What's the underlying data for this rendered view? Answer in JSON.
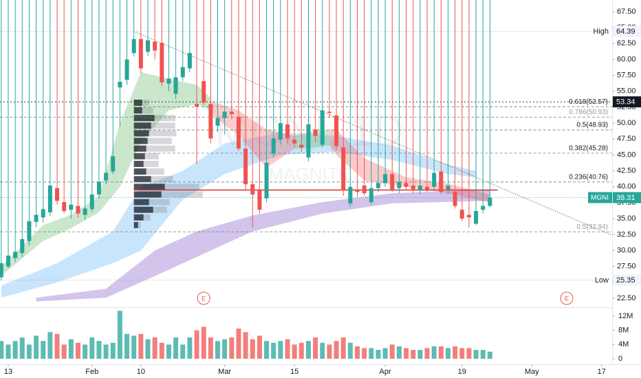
{
  "chart_data": {
    "type": "candlestick",
    "watermark": "MGNI, 1D",
    "watermark_sub": "MAGNITE",
    "xlim": [
      -0.18,
      87.5
    ],
    "ylim": [
      21.1,
      69.33
    ],
    "vlim": [
      -1550000,
      14130000
    ],
    "xticks": [
      {
        "value": 1,
        "label": "13"
      },
      {
        "value": 13,
        "label": "Feb"
      },
      {
        "value": 20,
        "label": "10"
      },
      {
        "value": 32,
        "label": "Mar"
      },
      {
        "value": 42,
        "label": "15"
      },
      {
        "value": 55,
        "label": "Apr"
      },
      {
        "value": 66,
        "label": "19"
      },
      {
        "value": 76,
        "label": "May"
      },
      {
        "value": 86,
        "label": "17"
      }
    ],
    "yticks": [
      {
        "value": 22.5,
        "label": "22.50"
      },
      {
        "value": 25,
        "label": "25.00"
      },
      {
        "value": 27.5,
        "label": "27.50"
      },
      {
        "value": 30,
        "label": "30.00"
      },
      {
        "value": 32.5,
        "label": "32.50"
      },
      {
        "value": 35,
        "label": "35.00"
      },
      {
        "value": 37.5,
        "label": "37.50"
      },
      {
        "value": 40,
        "label": "40.00"
      },
      {
        "value": 42.5,
        "label": "42.50"
      },
      {
        "value": 45,
        "label": "45.00"
      },
      {
        "value": 47.5,
        "label": "47.50"
      },
      {
        "value": 50,
        "label": "50.00"
      },
      {
        "value": 52.5,
        "label": "52.50"
      },
      {
        "value": 55,
        "label": "55.00"
      },
      {
        "value": 57.5,
        "label": "57.50"
      },
      {
        "value": 60,
        "label": "60.00"
      },
      {
        "value": 62.5,
        "label": "62.50"
      },
      {
        "value": 65,
        "label": "65.00"
      },
      {
        "value": 67.5,
        "label": "67.50"
      }
    ],
    "vticks": [
      0,
      {
        "value": 4000000,
        "label": "4M"
      },
      {
        "value": 8000000,
        "label": "8M"
      },
      {
        "value": 12000000,
        "label": "12M"
      }
    ],
    "up_color": "#26a69a",
    "down_color": "#ef5350",
    "open": [
      25.8,
      27.5,
      28.8,
      29.6,
      31.5,
      34.5,
      35.2,
      36.0,
      39.8,
      37.6,
      36.4,
      37.0,
      35.6,
      36.5,
      38.8,
      41.0,
      42.4,
      55.6,
      56.8,
      61.0,
      63.2,
      61.2,
      62.8,
      62.6,
      56.2,
      54.6,
      57.2,
      58.6,
      53.0,
      56.6,
      53.0,
      49.6,
      50.8,
      51.8,
      51.0,
      46.0,
      40.4,
      39.4,
      38.2,
      45.2,
      47.4,
      49.8,
      47.4,
      46.6,
      44.6,
      49.0,
      46.6,
      51.8,
      51.2,
      46.2,
      37.4,
      39.6,
      40.2,
      37.6,
      39.8,
      40.6,
      42.0,
      39.8,
      40.6,
      40.2,
      39.4,
      40.0,
      40.0,
      42.4,
      39.6,
      39.2,
      36.4,
      35.6,
      34.2,
      36.4,
      37.0
    ],
    "high": {
      "label": "High",
      "value": 64.39
    },
    "low": [
      25.35,
      27.2,
      28.2,
      29.0,
      30.8,
      33.6,
      34.4,
      35.4,
      37.2,
      35.8,
      35.0,
      35.2,
      34.8,
      36.0,
      38.2,
      40.4,
      42.0,
      49.5,
      56.0,
      60.5,
      57.8,
      60.6,
      60.0,
      55.8,
      55.0,
      53.8,
      56.6,
      58.0,
      43.6,
      52.8,
      46.8,
      48.6,
      48.2,
      50.6,
      45.6,
      39.6,
      33.6,
      35.8,
      37.6,
      44.6,
      46.6,
      46.8,
      46.2,
      45.4,
      44.0,
      47.0,
      46.2,
      50.8,
      45.8,
      38.6,
      36.8,
      38.4,
      38.6,
      37.2,
      39.2,
      40.0,
      39.2,
      39.0,
      39.6,
      39.0,
      38.8,
      39.2,
      39.6,
      38.8,
      38.8,
      36.6,
      34.6,
      33.6,
      34.0,
      35.8,
      36.8
    ],
    "close": [
      28.0,
      29.2,
      29.8,
      31.8,
      34.6,
      35.6,
      36.5,
      40.2,
      37.8,
      36.2,
      37.2,
      35.8,
      36.6,
      38.8,
      40.8,
      42.2,
      44.8,
      56.5,
      60.0,
      63.2,
      58.6,
      63.0,
      61.4,
      56.4,
      57.0,
      57.2,
      58.8,
      61.0,
      52.6,
      53.2,
      47.6,
      50.8,
      51.8,
      51.4,
      46.0,
      40.4,
      38.8,
      36.4,
      43.8,
      47.6,
      50.0,
      47.6,
      46.8,
      46.2,
      49.8,
      48.0,
      52.0,
      51.6,
      46.4,
      39.4,
      40.0,
      39.2,
      39.0,
      39.8,
      40.6,
      42.0,
      39.6,
      40.8,
      40.0,
      39.4,
      40.2,
      39.6,
      42.2,
      39.2,
      40.2,
      37.0,
      35.0,
      35.2,
      36.2,
      37.0,
      38.31
    ],
    "volume": [
      5000000,
      4000000,
      5000000,
      6000000,
      4000000,
      6500000,
      5000000,
      7500000,
      7000000,
      4000000,
      5500000,
      4500000,
      4000000,
      6000000,
      5000000,
      4000000,
      4500000,
      13500000,
      7000000,
      6500000,
      7000000,
      5500000,
      6000000,
      4500000,
      4000000,
      6000000,
      4000000,
      6000000,
      8000000,
      9000000,
      6000000,
      5000000,
      5500000,
      6000000,
      8500000,
      7500000,
      5500000,
      6500000,
      5000000,
      4500000,
      5000000,
      5500000,
      4000000,
      4500000,
      5000000,
      6000000,
      4500000,
      4000000,
      5000000,
      6000000,
      4500000,
      3500000,
      3000000,
      3000000,
      2500000,
      3000000,
      4000000,
      3500000,
      3000000,
      2500000,
      2500000,
      3000000,
      3500000,
      3500000,
      3000000,
      3500000,
      3000000,
      3000000,
      2500000,
      2500000,
      2000000
    ],
    "bands": [
      {
        "color": "rgba(100,181,246,0.35)",
        "x": [
          0,
          8,
          16,
          20,
          26,
          32,
          40,
          48,
          56,
          64,
          68
        ],
        "low": [
          22.6,
          25,
          28,
          30,
          38,
          42,
          45,
          45.5,
          44.2,
          42,
          41.5
        ],
        "high": [
          24.5,
          28,
          33,
          40,
          42.5,
          46.8,
          48.5,
          48,
          46.5,
          43.5,
          42.5
        ]
      },
      {
        "color": "rgba(126,87,194,0.35)",
        "x": [
          5,
          15,
          22,
          28,
          36,
          46,
          56,
          70
        ],
        "low": [
          22,
          22.6,
          26,
          29,
          33,
          35.8,
          37.4,
          37.8
        ],
        "high": [
          22.6,
          24,
          30,
          33,
          35.5,
          37.6,
          39,
          39.6
        ]
      },
      {
        "color": "rgba(102,187,106,0.35)",
        "x": [
          0,
          6,
          10,
          14,
          17,
          20,
          24,
          28,
          30
        ],
        "low": [
          26,
          31.5,
          33.5,
          36,
          40,
          47,
          52,
          53,
          52
        ],
        "high": [
          27.5,
          34,
          35.6,
          38.5,
          50,
          58,
          57,
          56,
          54
        ]
      },
      {
        "color": "rgba(239,83,80,0.3)",
        "x": [
          30,
          34,
          38,
          42
        ],
        "low": [
          51.5,
          48,
          43,
          46
        ],
        "high": [
          53.5,
          52,
          49,
          48
        ]
      },
      {
        "color": "rgba(102,187,106,0.35)",
        "x": [
          42,
          44,
          47
        ],
        "low": [
          46,
          46,
          46.5
        ],
        "high": [
          48,
          48.6,
          49
        ]
      },
      {
        "color": "rgba(239,83,80,0.3)",
        "x": [
          47,
          48,
          52,
          58,
          64,
          70
        ],
        "low": [
          46.5,
          45,
          41,
          40,
          39,
          37.5
        ],
        "high": [
          49,
          49,
          44.5,
          41.5,
          40.5,
          38.8
        ]
      }
    ],
    "volume_profile": {
      "prices": [
        53.2,
        52.0,
        50.8,
        49.6,
        48.4,
        47.2,
        46.0,
        44.8,
        43.6,
        42.4,
        41.2,
        40.0,
        38.8,
        37.6,
        36.4,
        35.2,
        34.0
      ],
      "up": [
        12,
        12,
        30,
        25,
        22,
        20,
        18,
        16,
        14,
        18,
        25,
        45,
        40,
        22,
        28,
        14,
        6
      ],
      "down": [
        10,
        16,
        30,
        35,
        40,
        35,
        42,
        20,
        22,
        26,
        32,
        50,
        60,
        30,
        20,
        10,
        4
      ]
    },
    "fib_levels": [
      {
        "label": "0.618(52.57)",
        "value": 52.57,
        "start": 19,
        "color": "#131722"
      },
      {
        "label": "0.786(50.93)",
        "value": 50.93,
        "start": -0.18,
        "color": "#9598a1"
      },
      {
        "label": "0.5(48.93)",
        "value": 48.93,
        "start": 19,
        "color": "#131722"
      },
      {
        "label": "0.382(45.28)",
        "value": 45.28,
        "start": 19,
        "color": "#131722"
      },
      {
        "label": "0.236(40.76)",
        "value": 40.76,
        "start": -0.18,
        "color": "#131722"
      },
      {
        "label": "0.5(32.94)",
        "value": 32.94,
        "start": -0.18,
        "color": "#9598a1"
      }
    ],
    "trendline": {
      "x": [
        19,
        87.5
      ],
      "y": [
        64.39,
        32.4
      ]
    },
    "resistance": {
      "x": [
        19,
        71.1
      ],
      "value": 39.5
    },
    "earnings": [
      {
        "index": 29,
        "label": "E"
      },
      {
        "index": 81,
        "label": "E"
      }
    ],
    "low_level": {
      "label": "Low",
      "value": 25.35
    },
    "last": {
      "label": "MGNI",
      "value": 38.31
    },
    "marker": 53.34
  }
}
